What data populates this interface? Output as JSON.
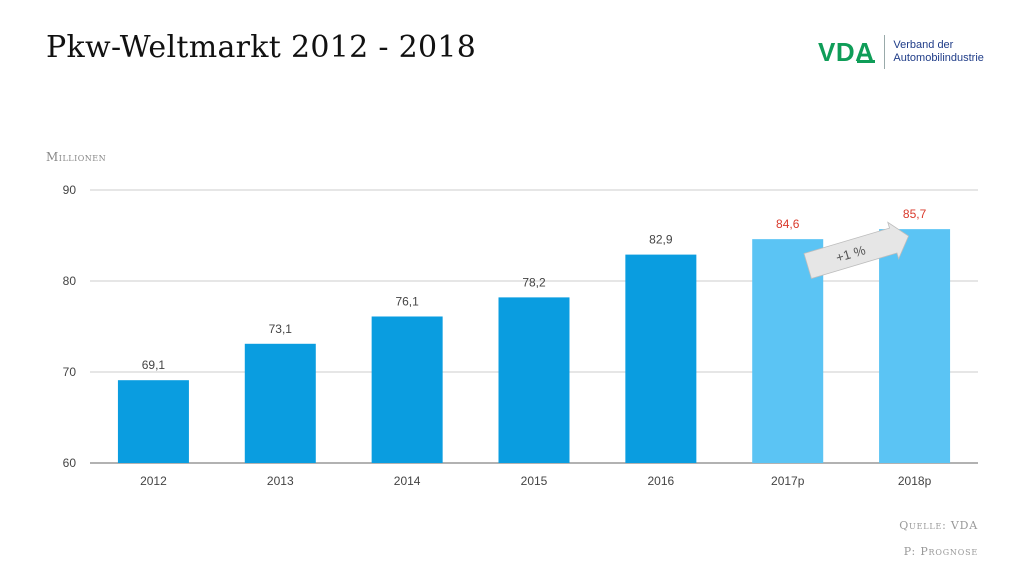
{
  "header": {
    "title": "Pkw-Weltmarkt 2012 - 2018"
  },
  "logo": {
    "mark": "VDA",
    "line1": "Verband der",
    "line2": "Automobilindustrie",
    "color": "#0f9d58"
  },
  "footer": {
    "source": "Quelle: VDA",
    "note": "P: Prognose"
  },
  "chart_data": {
    "type": "bar",
    "title": "",
    "ylabel": "Millionen",
    "xlabel": "",
    "categories": [
      "2012",
      "2013",
      "2014",
      "2015",
      "2016",
      "2017p",
      "2018p"
    ],
    "values": [
      69.1,
      73.1,
      76.1,
      78.2,
      82.9,
      84.6,
      85.7
    ],
    "value_labels": [
      "69,1",
      "73,1",
      "76,1",
      "78,2",
      "82,9",
      "84,6",
      "85,7"
    ],
    "forecast": [
      false,
      false,
      false,
      false,
      false,
      true,
      true
    ],
    "ylim": [
      60,
      90
    ],
    "yticks": [
      60,
      70,
      80,
      90
    ],
    "grid": true,
    "colors": {
      "actual": "#0a9de0",
      "forecast": "#5bc4f4",
      "forecast_label": "#d9392b",
      "label": "#444444"
    },
    "annotation": {
      "text": "+1 %"
    }
  }
}
